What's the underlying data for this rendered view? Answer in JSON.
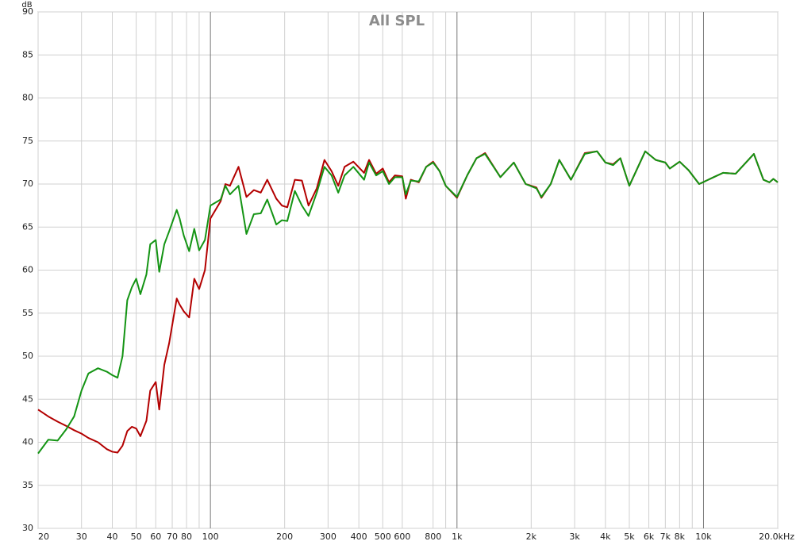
{
  "chart_data": {
    "type": "line",
    "title": "All SPL",
    "y_label": "dB",
    "log_x": true,
    "grid": true,
    "x": [
      20,
      22,
      24,
      26,
      28,
      30,
      32,
      35,
      38,
      40,
      42,
      44,
      46,
      48,
      50,
      52,
      55,
      57,
      60,
      62,
      65,
      68,
      73,
      75,
      78,
      82,
      86,
      90,
      95,
      100,
      110,
      115,
      120,
      130,
      140,
      150,
      160,
      170,
      185,
      195,
      205,
      220,
      235,
      250,
      270,
      290,
      310,
      330,
      350,
      380,
      420,
      440,
      470,
      500,
      530,
      560,
      600,
      620,
      650,
      700,
      750,
      800,
      850,
      900,
      1000,
      1100,
      1200,
      1300,
      1500,
      1700,
      1900,
      2100,
      2200,
      2400,
      2600,
      2900,
      3300,
      3700,
      4000,
      4300,
      4600,
      5000,
      5800,
      6400,
      7000,
      7300,
      8000,
      8700,
      9600,
      11000,
      12000,
      13500,
      16000,
      17500,
      18500,
      19200,
      20000
    ],
    "series": [
      {
        "color": "#b30000",
        "values": [
          43.8,
          43.0,
          42.4,
          41.9,
          41.4,
          41.0,
          40.5,
          40.0,
          39.2,
          38.9,
          38.8,
          39.6,
          41.3,
          41.8,
          41.6,
          40.7,
          42.5,
          46.0,
          47.0,
          43.8,
          49.0,
          51.5,
          56.7,
          56.0,
          55.2,
          54.5,
          59.0,
          57.8,
          60.0,
          66.0,
          68.0,
          70.0,
          69.8,
          72.0,
          68.5,
          69.3,
          69.0,
          70.5,
          68.3,
          67.5,
          67.3,
          70.5,
          70.4,
          67.5,
          69.5,
          72.8,
          71.5,
          69.8,
          72.0,
          72.6,
          71.3,
          72.8,
          71.2,
          71.8,
          70.2,
          71.0,
          70.9,
          68.3,
          70.5,
          70.2,
          72.0,
          72.6,
          71.5,
          69.8,
          68.4,
          71.0,
          73.0,
          73.6,
          70.8,
          72.5,
          70.0,
          69.6,
          68.4,
          70.0,
          72.8,
          70.5,
          73.6,
          73.8,
          72.5,
          72.3,
          73.0,
          69.8,
          73.8,
          72.8,
          72.5,
          71.8,
          72.6,
          71.6,
          70.0,
          70.8,
          71.3,
          71.2,
          73.5,
          70.5,
          70.2,
          70.6,
          70.2
        ]
      },
      {
        "color": "#149414",
        "values": [
          38.7,
          40.3,
          40.2,
          41.5,
          43.0,
          46.0,
          48.0,
          48.6,
          48.2,
          47.8,
          47.5,
          50.0,
          56.5,
          58.0,
          59.0,
          57.2,
          59.5,
          63.0,
          63.5,
          59.8,
          63.0,
          64.5,
          67.0,
          66.0,
          64.0,
          62.2,
          64.8,
          62.3,
          63.5,
          67.5,
          68.2,
          69.8,
          68.8,
          69.8,
          64.2,
          66.5,
          66.6,
          68.2,
          65.3,
          65.8,
          65.7,
          69.2,
          67.5,
          66.3,
          69.0,
          72.0,
          71.0,
          69.0,
          71.0,
          72.0,
          70.5,
          72.5,
          71.0,
          71.5,
          70.0,
          70.8,
          70.8,
          68.8,
          70.4,
          70.3,
          72.0,
          72.5,
          71.5,
          69.8,
          68.5,
          71.0,
          73.0,
          73.5,
          70.8,
          72.5,
          70.0,
          69.5,
          68.5,
          70.0,
          72.8,
          70.5,
          73.5,
          73.8,
          72.5,
          72.2,
          73.0,
          69.8,
          73.8,
          72.8,
          72.5,
          71.8,
          72.6,
          71.6,
          70.0,
          70.8,
          71.3,
          71.2,
          73.5,
          70.5,
          70.2,
          70.6,
          70.2
        ]
      }
    ],
    "xlim": [
      20,
      20000
    ],
    "xticks": [
      20,
      30,
      40,
      50,
      60,
      70,
      80,
      100,
      200,
      300,
      400,
      500,
      600,
      800,
      {
        "value": 1000,
        "label": "1k"
      },
      {
        "value": 2000,
        "label": "2k"
      },
      {
        "value": 3000,
        "label": "3k"
      },
      {
        "value": 4000,
        "label": "4k"
      },
      {
        "value": 5000,
        "label": "5k"
      },
      {
        "value": 6000,
        "label": "6k"
      },
      {
        "value": 7000,
        "label": "7k"
      },
      {
        "value": 8000,
        "label": "8k"
      },
      {
        "value": 10000,
        "label": "10k"
      },
      {
        "value": 20000,
        "label": "20.0kHz"
      }
    ],
    "minor_xticks": [
      90,
      900,
      9000
    ],
    "ylim": [
      30,
      90
    ],
    "yticks": [
      30,
      35,
      40,
      45,
      50,
      55,
      60,
      65,
      70,
      75,
      80,
      85,
      90
    ]
  }
}
